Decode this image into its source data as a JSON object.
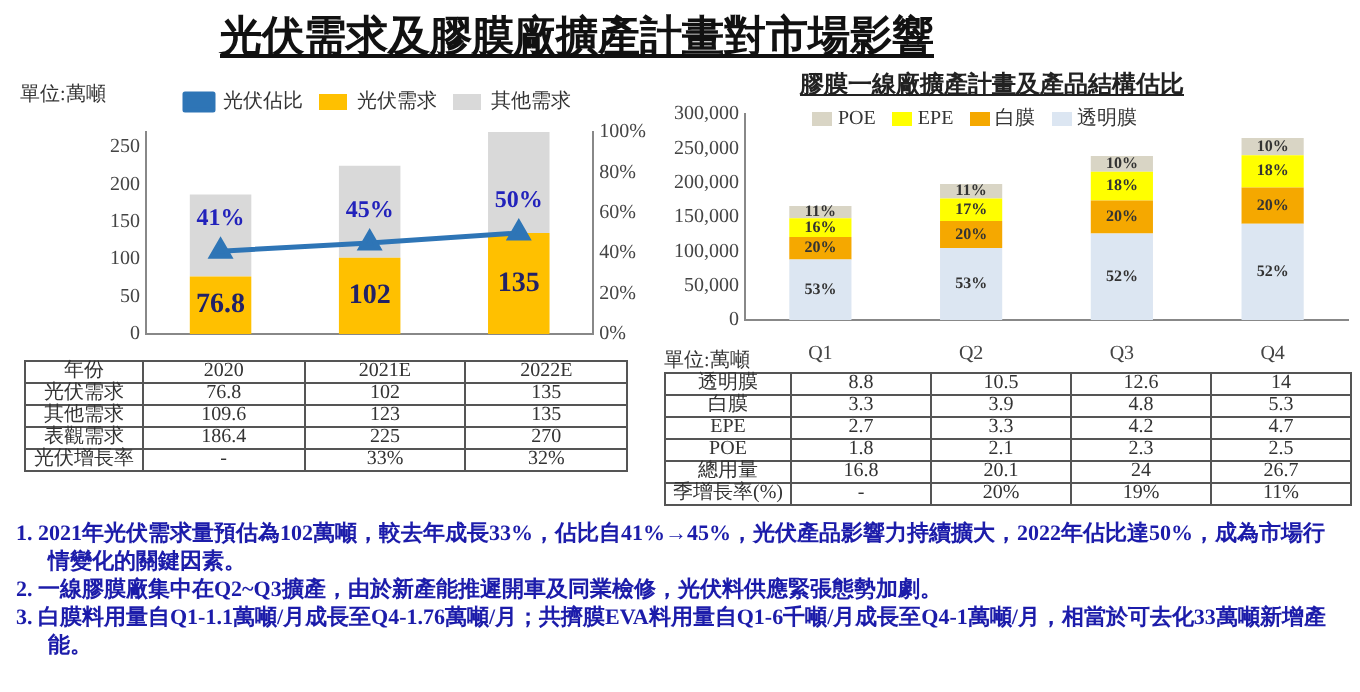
{
  "chart_data": [
    {
      "type": "bar",
      "title": "光伏需求及膠膜廠擴產計畫對市場影響",
      "categories": [
        "2020",
        "2021E",
        "2022E"
      ],
      "stacked": true,
      "data_labels": true,
      "tick_labels": "y",
      "legend": "top",
      "grid": false,
      "marker": "triangle",
      "line_style": "solid",
      "series": [
        {
          "name": "光伏需求",
          "color": "#ffc000",
          "values": [
            76.8,
            102,
            135
          ],
          "value_labels": [
            "76.8",
            "102",
            "135"
          ]
        },
        {
          "name": "其他需求",
          "color": "#d9d9d9",
          "values": [
            109.6,
            123,
            135
          ]
        },
        {
          "name": "光伏佔比",
          "type": "line",
          "axis": "y2",
          "color": "#2e75b6",
          "values": [
            41,
            45,
            50
          ],
          "value_labels": [
            "41%",
            "45%",
            "50%"
          ]
        }
      ],
      "ylim": [
        0,
        270
      ],
      "yticks": [
        0,
        50,
        100,
        150,
        200,
        250
      ],
      "y2lim": [
        0,
        100
      ],
      "y2ticks": [
        {
          "value": 0,
          "label": "0%"
        },
        {
          "value": 20,
          "label": "20%"
        },
        {
          "value": 40,
          "label": "40%"
        },
        {
          "value": 60,
          "label": "60%"
        },
        {
          "value": 80,
          "label": "80%"
        },
        {
          "value": 100,
          "label": "100%"
        }
      ],
      "annotations": [
        "單位:萬噸",
        "年份",
        "表觀需求",
        "186.4",
        "225",
        "270",
        "光伏增長率",
        "-",
        "33%",
        "32%"
      ]
    },
    {
      "type": "bar",
      "title": "膠膜一線廠擴產計畫及產品結構估比",
      "categories": [
        "Q1",
        "Q2",
        "Q3",
        "Q4"
      ],
      "stacked": true,
      "legend": "top left",
      "grid": false,
      "series": [
        {
          "name": "透明膜",
          "color": "#dce6f2",
          "values": [
            88000,
            105000,
            126000,
            140000
          ]
        },
        {
          "name": "白膜",
          "color": "#f5a800",
          "values": [
            33000,
            39000,
            48000,
            53000
          ]
        },
        {
          "name": "EPE",
          "color": "#ffff00",
          "values": [
            27000,
            33000,
            42000,
            47000
          ]
        },
        {
          "name": "POE",
          "color": "#d9d5c5",
          "values": [
            18000,
            21000,
            23000,
            25000
          ]
        }
      ],
      "ylim": [
        0,
        300000
      ],
      "yticks": [
        {
          "value": 0,
          "label": "0"
        },
        {
          "value": 50000,
          "label": "50,000"
        },
        {
          "value": 100000,
          "label": "100,000"
        },
        {
          "value": 150000,
          "label": "150,000"
        },
        {
          "value": 200000,
          "label": "200,000"
        },
        {
          "value": 250000,
          "label": "250,000"
        },
        {
          "value": 300000,
          "label": "300,000"
        }
      ],
      "annotations": [
        "單位:萬噸",
        "透明膜",
        "8.8",
        "10.5",
        "12.6",
        "14",
        "白膜",
        "3.3",
        "3.9",
        "4.8",
        "5.3",
        "EPE",
        "2.7",
        "3.3",
        "4.2",
        "4.7",
        "POE",
        "1.8",
        "2.1",
        "2.3",
        "2.5",
        "總用量",
        "16.8",
        "20.1",
        "24",
        "26.7",
        "季增長率(%)",
        "-",
        "20%",
        "19%",
        "11%",
        {
          "text": "53%",
          "x": "Q1",
          "y": 88000
        },
        {
          "text": "20%",
          "x": "Q1",
          "y": 121000
        },
        {
          "text": "16%",
          "x": "Q1",
          "y": 148000
        },
        {
          "text": "11%",
          "x": "Q1",
          "y": 166000
        },
        {
          "text": "53%",
          "x": "Q2",
          "y": 105000
        },
        {
          "text": "20%",
          "x": "Q2",
          "y": 144000
        },
        {
          "text": "17%",
          "x": "Q2",
          "y": 177000
        },
        {
          "text": "11%",
          "x": "Q2",
          "y": 198000
        },
        {
          "text": "52%",
          "x": "Q3",
          "y": 126000
        },
        {
          "text": "20%",
          "x": "Q3",
          "y": 174000
        },
        {
          "text": "18%",
          "x": "Q3",
          "y": 216000
        },
        {
          "text": "10%",
          "x": "Q3",
          "y": 239000
        },
        {
          "text": "52%",
          "x": "Q4",
          "y": 140000
        },
        {
          "text": "20%",
          "x": "Q4",
          "y": 193000
        },
        {
          "text": "18%",
          "x": "Q4",
          "y": 240000
        },
        {
          "text": "10%",
          "x": "Q4",
          "y": 265000
        }
      ]
    },
    {
      "type": "other",
      "annotations": [
        "1. 2021年光伏需求量預估為102萬噸，較去年成長33%，佔比自41%→45%，光伏產品影響力持續擴大，2022年佔比達50%，成為市場行情變化的關鍵因素。",
        "2. 一線膠膜廠集中在Q2~Q3擴產，由於新產能推遲開車及同業檢修，光伏料供應緊張態勢加劇。",
        "3. 白膜料用量自Q1-1.1萬噸/月成長至Q4-1.76萬噸/月；共擠膜EVA料用量自Q1-6千噸/月成長至Q4-1萬噸/月，相當於可去化33萬噸新增產能。"
      ]
    }
  ]
}
